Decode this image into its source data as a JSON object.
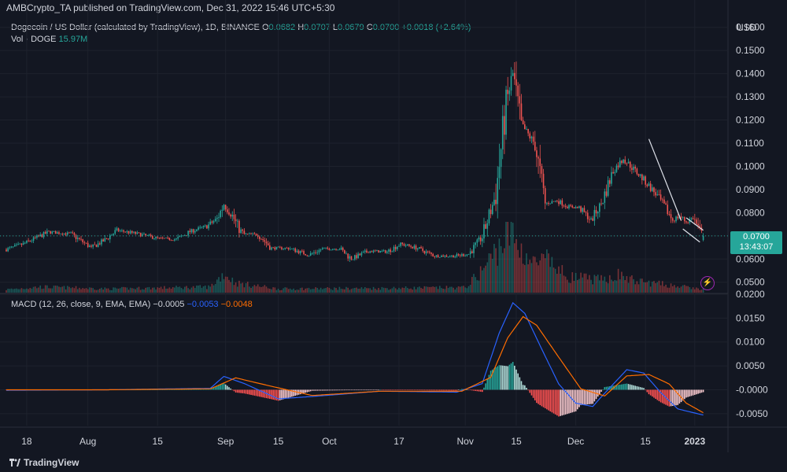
{
  "header": {
    "published": "AMBCrypto_TA published on TradingView.com, Dec 31, 2022 15:46 UTC+5:30"
  },
  "legend": {
    "symbol": "Dogecoin / US Dollar (calculated by TradingView), 1D, BINANCE",
    "o_label": "O",
    "o_value": "0.0682",
    "h_label": "H",
    "h_value": "0.0707",
    "l_label": "L",
    "l_value": "0.0679",
    "c_label": "C",
    "c_value": "0.0700",
    "change": "+0.0018 (+2.64%)",
    "vol_label": "Vol · DOGE",
    "vol_value": "15.97M"
  },
  "macd_legend": {
    "label": "MACD (12, 26, close, 9, EMA, EMA)",
    "hist": "−0.0005",
    "macd": "−0.0053",
    "signal": "−0.0048"
  },
  "price_axis": {
    "currency": "USD",
    "last_price": "0.0700",
    "countdown": "13:43:07"
  },
  "footer": {
    "brand": "TradingView"
  },
  "colors": {
    "up": "#26a69a",
    "down": "#ef5350",
    "macd": "#2962ff",
    "signal": "#ff6d00",
    "bg": "#131722",
    "grid": "#1e222d",
    "text": "#d1d4dc"
  },
  "chart_data": {
    "type": "candlestick",
    "title": "Dogecoin / US Dollar (calculated by TradingView), 1D, BINANCE",
    "x_ticks": [
      "18",
      "Aug",
      "15",
      "Sep",
      "15",
      "Oct",
      "17",
      "Nov",
      "15",
      "Dec",
      "15",
      "2023"
    ],
    "price_ticks": [
      "0.1600",
      "0.1500",
      "0.1400",
      "0.1300",
      "0.1200",
      "0.1100",
      "0.1000",
      "0.0900",
      "0.0800",
      "0.0700",
      "0.0600",
      "0.0500"
    ],
    "price_range": [
      0.0455,
      0.165
    ],
    "macd_ticks": [
      "0.0200",
      "0.0150",
      "0.0100",
      "0.0050",
      "-0.0000",
      "-0.0050"
    ],
    "macd_range": [
      -0.0075,
      0.02
    ],
    "close_path": [
      [
        0,
        0.0641
      ],
      [
        10,
        0.0665
      ],
      [
        25,
        0.0717
      ],
      [
        38,
        0.0708
      ],
      [
        50,
        0.0649
      ],
      [
        58,
        0.0682
      ],
      [
        65,
        0.0724
      ],
      [
        75,
        0.0712
      ],
      [
        90,
        0.0688
      ],
      [
        100,
        0.0685
      ],
      [
        108,
        0.0718
      ],
      [
        118,
        0.0742
      ],
      [
        124,
        0.0774
      ],
      [
        128,
        0.0836
      ],
      [
        133,
        0.0787
      ],
      [
        137,
        0.0728
      ],
      [
        140,
        0.0707
      ],
      [
        148,
        0.0706
      ],
      [
        156,
        0.0647
      ],
      [
        166,
        0.0647
      ],
      [
        178,
        0.0618
      ],
      [
        186,
        0.0644
      ],
      [
        196,
        0.0645
      ],
      [
        203,
        0.0601
      ],
      [
        213,
        0.0634
      ],
      [
        224,
        0.0632
      ],
      [
        232,
        0.0665
      ],
      [
        241,
        0.0649
      ],
      [
        252,
        0.0614
      ],
      [
        264,
        0.0613
      ],
      [
        272,
        0.0622
      ],
      [
        280,
        0.0695
      ],
      [
        288,
        0.0879
      ],
      [
        294,
        0.1268
      ],
      [
        298,
        0.1401
      ],
      [
        303,
        0.1179
      ],
      [
        311,
        0.1096
      ],
      [
        317,
        0.0839
      ],
      [
        324,
        0.0852
      ],
      [
        330,
        0.0828
      ],
      [
        337,
        0.0821
      ],
      [
        344,
        0.0769
      ],
      [
        350,
        0.0839
      ],
      [
        357,
        0.0982
      ],
      [
        363,
        0.1033
      ],
      [
        373,
        0.0958
      ],
      [
        382,
        0.0882
      ],
      [
        388,
        0.0817
      ],
      [
        392,
        0.0768
      ],
      [
        396,
        0.0785
      ],
      [
        400,
        0.076
      ],
      [
        404,
        0.0778
      ],
      [
        408,
        0.0721
      ],
      [
        410,
        0.07
      ]
    ],
    "volume_path": [
      [
        0,
        0.05
      ],
      [
        20,
        0.09
      ],
      [
        60,
        0.06
      ],
      [
        120,
        0.09
      ],
      [
        128,
        0.3
      ],
      [
        135,
        0.15
      ],
      [
        160,
        0.06
      ],
      [
        220,
        0.07
      ],
      [
        270,
        0.08
      ],
      [
        280,
        0.35
      ],
      [
        288,
        0.65
      ],
      [
        296,
        0.95
      ],
      [
        302,
        0.7
      ],
      [
        310,
        0.45
      ],
      [
        318,
        0.5
      ],
      [
        330,
        0.25
      ],
      [
        350,
        0.2
      ],
      [
        360,
        0.28
      ],
      [
        370,
        0.18
      ],
      [
        390,
        0.12
      ],
      [
        410,
        0.05
      ]
    ],
    "macd_path": [
      [
        0,
        -0.0001
      ],
      [
        60,
        0.0
      ],
      [
        120,
        0.0003
      ],
      [
        128,
        0.0028
      ],
      [
        140,
        0.0013
      ],
      [
        160,
        -0.0019
      ],
      [
        180,
        -0.0014
      ],
      [
        220,
        -0.0003
      ],
      [
        265,
        -0.0005
      ],
      [
        280,
        0.0013
      ],
      [
        290,
        0.0119
      ],
      [
        298,
        0.0182
      ],
      [
        305,
        0.016
      ],
      [
        315,
        0.0085
      ],
      [
        325,
        0.0012
      ],
      [
        335,
        -0.0028
      ],
      [
        345,
        -0.0035
      ],
      [
        350,
        -0.0015
      ],
      [
        365,
        0.0042
      ],
      [
        375,
        0.0035
      ],
      [
        385,
        -0.0006
      ],
      [
        395,
        -0.004
      ],
      [
        410,
        -0.0053
      ]
    ],
    "signal_path": [
      [
        0,
        0.0
      ],
      [
        60,
        0.0
      ],
      [
        120,
        0.0002
      ],
      [
        135,
        0.0025
      ],
      [
        155,
        0.0008
      ],
      [
        180,
        -0.0012
      ],
      [
        220,
        -0.0003
      ],
      [
        268,
        -0.0003
      ],
      [
        285,
        0.0026
      ],
      [
        295,
        0.0109
      ],
      [
        304,
        0.0153
      ],
      [
        312,
        0.0135
      ],
      [
        325,
        0.0068
      ],
      [
        338,
        0.0002
      ],
      [
        352,
        -0.0013
      ],
      [
        365,
        0.0029
      ],
      [
        378,
        0.0032
      ],
      [
        390,
        0.0012
      ],
      [
        400,
        -0.0028
      ],
      [
        410,
        -0.0048
      ]
    ],
    "trendline": [
      [
        378,
        0.1118
      ],
      [
        397,
        0.0766
      ]
    ],
    "channel_upper": [
      [
        400,
        0.0778
      ],
      [
        410,
        0.0724
      ]
    ],
    "channel_lower": [
      [
        398,
        0.073
      ],
      [
        408,
        0.0673
      ]
    ]
  }
}
